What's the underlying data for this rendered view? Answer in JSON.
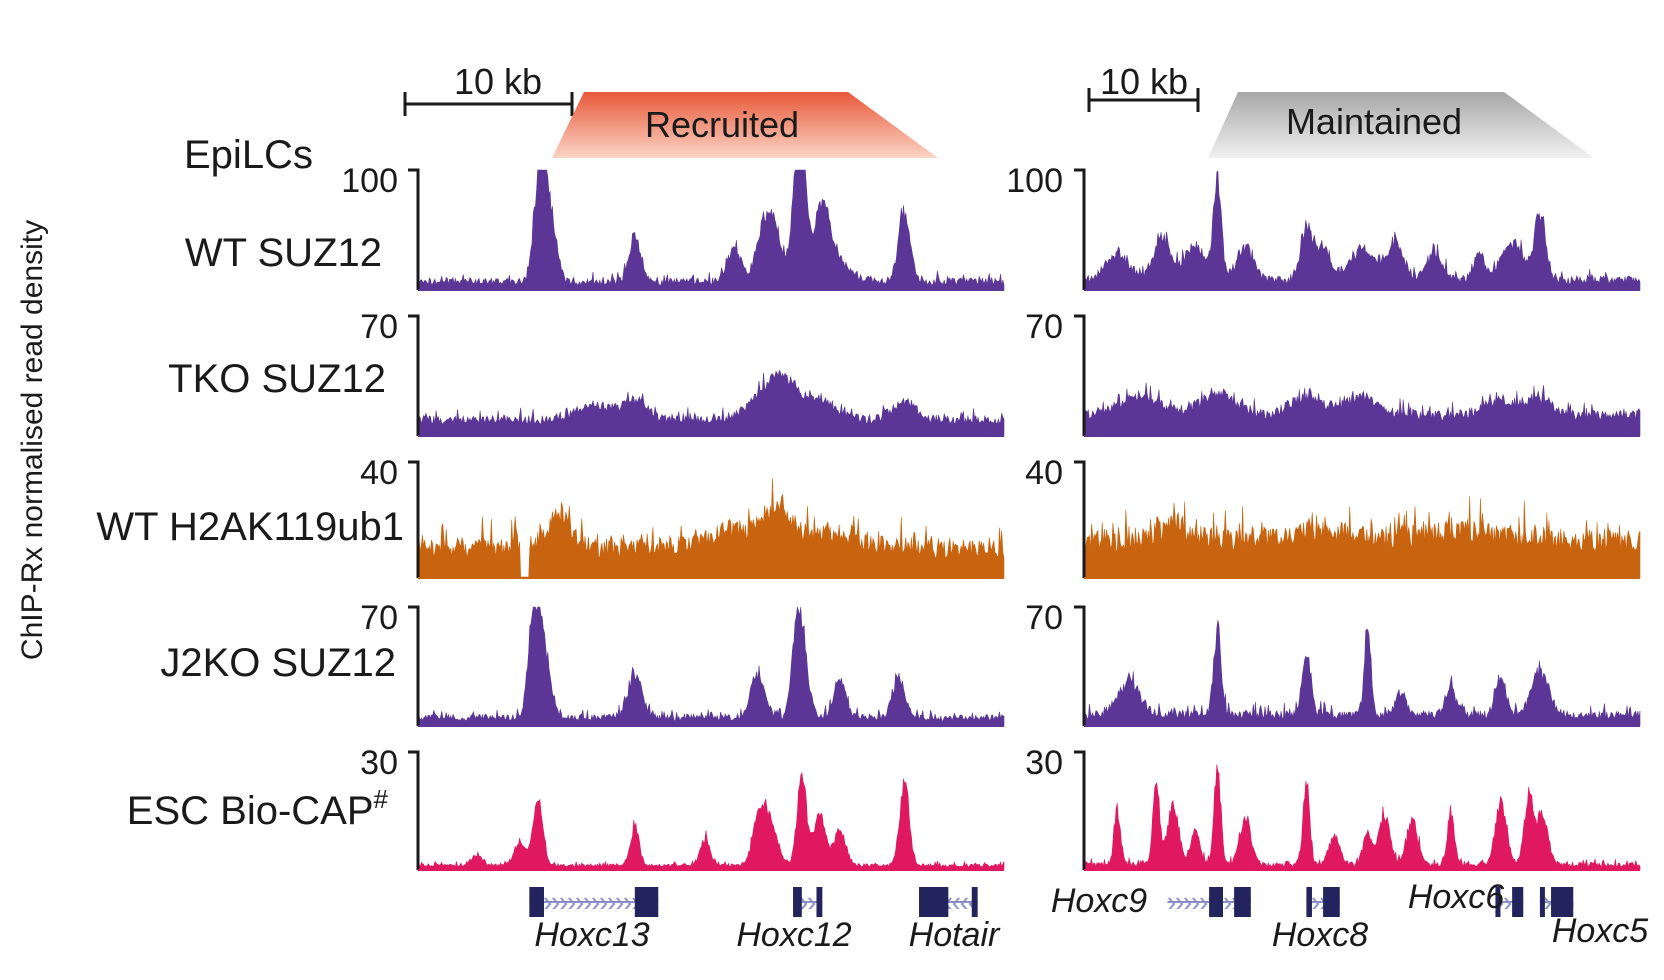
{
  "figure": {
    "y_axis_title": "ChIP-Rx normalised read density",
    "cell_label": "EpiLCs"
  },
  "colors": {
    "purple": "#5b3696",
    "orange": "#c8640f",
    "pink": "#e0185f",
    "gene": "#23245e",
    "intron": "#8b8fc8",
    "recruited_top": "#e8583a",
    "maintained_top": "#a7a7a7"
  },
  "panels": [
    {
      "id": "left",
      "banner": "Recruited",
      "scale_bar": "10 kb",
      "genes": [
        {
          "name": "Hoxc13",
          "start": 0.19,
          "end": 0.41,
          "exons": [
            [
              0.19,
              0.215
            ],
            [
              0.37,
              0.41
            ]
          ],
          "strand": "+"
        },
        {
          "name": "Hoxc12",
          "start": 0.64,
          "end": 0.69,
          "exons": [
            [
              0.64,
              0.655
            ],
            [
              0.68,
              0.69
            ]
          ],
          "strand": "+"
        },
        {
          "name": "Hotair",
          "start": 0.855,
          "end": 0.955,
          "exons": [
            [
              0.855,
              0.905
            ],
            [
              0.945,
              0.955
            ]
          ],
          "strand": "-"
        }
      ]
    },
    {
      "id": "right",
      "banner": "Maintained",
      "scale_bar": "10 kb",
      "genes": [
        {
          "name": "Hoxc9",
          "start": 0.15,
          "end": 0.3,
          "exons": [
            [
              0.225,
              0.25
            ],
            [
              0.27,
              0.3
            ]
          ],
          "strand": "+"
        },
        {
          "name": "Hoxc8",
          "start": 0.4,
          "end": 0.46,
          "exons": [
            [
              0.4,
              0.41
            ],
            [
              0.43,
              0.46
            ]
          ],
          "strand": "+"
        },
        {
          "name": "Hoxc6",
          "start": 0.74,
          "end": 0.79,
          "exons": [
            [
              0.74,
              0.745
            ],
            [
              0.77,
              0.79
            ]
          ],
          "strand": "+"
        },
        {
          "name": "Hoxc5",
          "start": 0.82,
          "end": 0.88,
          "exons": [
            [
              0.82,
              0.825
            ],
            [
              0.84,
              0.88
            ]
          ],
          "strand": "+"
        }
      ]
    }
  ],
  "chart_data": {
    "type": "area",
    "title": "",
    "ylabel": "ChIP-Rx normalised read density",
    "xlabel": "",
    "tracks": [
      {
        "name": "WT SUZ12",
        "color_key": "purple",
        "ylim": [
          0,
          100
        ],
        "tick": "100",
        "series": {
          "left": {
            "base": 4,
            "noise": 6,
            "seed": 11,
            "peaks": [
              [
                0.22,
                92,
                0.012
              ],
              [
                0.205,
                70,
                0.008
              ],
              [
                0.37,
                42,
                0.01
              ],
              [
                0.54,
                30,
                0.012
              ],
              [
                0.59,
                55,
                0.012
              ],
              [
                0.61,
                45,
                0.01
              ],
              [
                0.655,
                98,
                0.008
              ],
              [
                0.645,
                60,
                0.01
              ],
              [
                0.69,
                45,
                0.012
              ],
              [
                0.83,
                68,
                0.01
              ],
              [
                0.695,
                30,
                0.03
              ]
            ]
          },
          "right": {
            "base": 5,
            "noise": 7,
            "seed": 23,
            "peaks": [
              [
                0.06,
                25,
                0.02
              ],
              [
                0.14,
                40,
                0.015
              ],
              [
                0.2,
                30,
                0.02
              ],
              [
                0.24,
                95,
                0.007
              ],
              [
                0.29,
                30,
                0.015
              ],
              [
                0.4,
                50,
                0.01
              ],
              [
                0.43,
                28,
                0.015
              ],
              [
                0.5,
                30,
                0.02
              ],
              [
                0.56,
                35,
                0.015
              ],
              [
                0.63,
                25,
                0.015
              ],
              [
                0.77,
                35,
                0.02
              ],
              [
                0.82,
                60,
                0.01
              ],
              [
                0.71,
                22,
                0.01
              ]
            ]
          }
        }
      },
      {
        "name": "TKO SUZ12",
        "color_key": "purple",
        "ylim": [
          0,
          70
        ],
        "tick": "70",
        "series": {
          "left": {
            "base": 7,
            "noise": 5,
            "seed": 31,
            "peaks": [
              [
                0.37,
                14,
                0.02
              ],
              [
                0.59,
                16,
                0.03
              ],
              [
                0.625,
                20,
                0.02
              ],
              [
                0.68,
                14,
                0.03
              ],
              [
                0.83,
                12,
                0.02
              ],
              [
                0.3,
                10,
                0.03
              ]
            ]
          },
          "right": {
            "base": 9,
            "noise": 6,
            "seed": 37,
            "peaks": [
              [
                0.1,
                12,
                0.04
              ],
              [
                0.24,
                15,
                0.03
              ],
              [
                0.4,
                12,
                0.03
              ],
              [
                0.5,
                12,
                0.03
              ],
              [
                0.75,
                10,
                0.03
              ],
              [
                0.82,
                12,
                0.02
              ]
            ]
          }
        }
      },
      {
        "name": "WT H2AK119ub1",
        "color_key": "orange",
        "ylim": [
          0,
          40
        ],
        "tick": "40",
        "series": {
          "left": {
            "base": 7,
            "noise": 7,
            "seed": 41,
            "peaks": [
              [
                0.24,
                12,
                0.02
              ],
              [
                0.55,
                7,
                0.05
              ],
              [
                0.615,
                12,
                0.02
              ],
              [
                0.7,
                6,
                0.05
              ]
            ],
            "dip": [
              0.175,
              0.19
            ]
          },
          "right": {
            "base": 9,
            "noise": 8,
            "seed": 43,
            "peaks": [
              [
                0.16,
                6,
                0.03
              ],
              [
                0.42,
                4,
                0.05
              ],
              [
                0.68,
                4,
                0.05
              ]
            ]
          }
        }
      },
      {
        "name": "J2KO SUZ12",
        "color_key": "purple",
        "ylim": [
          0,
          70
        ],
        "tick": "70",
        "series": {
          "left": {
            "base": 3,
            "noise": 4,
            "seed": 53,
            "peaks": [
              [
                0.21,
                60,
                0.012
              ],
              [
                0.195,
                45,
                0.008
              ],
              [
                0.37,
                28,
                0.012
              ],
              [
                0.58,
                30,
                0.012
              ],
              [
                0.655,
                52,
                0.01
              ],
              [
                0.645,
                35,
                0.008
              ],
              [
                0.72,
                25,
                0.01
              ],
              [
                0.82,
                28,
                0.01
              ]
            ]
          },
          "right": {
            "base": 4,
            "noise": 5,
            "seed": 59,
            "peaks": [
              [
                0.08,
                22,
                0.02
              ],
              [
                0.24,
                55,
                0.007
              ],
              [
                0.4,
                38,
                0.008
              ],
              [
                0.51,
                58,
                0.006
              ],
              [
                0.57,
                15,
                0.01
              ],
              [
                0.66,
                18,
                0.01
              ],
              [
                0.75,
                25,
                0.01
              ],
              [
                0.82,
                30,
                0.015
              ]
            ]
          }
        }
      },
      {
        "name": "ESC Bio-CAP",
        "superscript": "#",
        "color_key": "pink",
        "ylim": [
          0,
          30
        ],
        "tick": "30",
        "series": {
          "left": {
            "base": 0.8,
            "noise": 0.8,
            "seed": 61,
            "peaks": [
              [
                0.205,
                19,
                0.008
              ],
              [
                0.175,
                7,
                0.01
              ],
              [
                0.37,
                12,
                0.007
              ],
              [
                0.49,
                8,
                0.008
              ],
              [
                0.58,
                12,
                0.01
              ],
              [
                0.6,
                14,
                0.012
              ],
              [
                0.655,
                26,
                0.008
              ],
              [
                0.685,
                15,
                0.01
              ],
              [
                0.72,
                10,
                0.01
              ],
              [
                0.83,
                24,
                0.008
              ],
              [
                0.1,
                3,
                0.01
              ]
            ]
          },
          "right": {
            "base": 0.8,
            "noise": 1.2,
            "seed": 67,
            "peaks": [
              [
                0.06,
                15,
                0.006
              ],
              [
                0.13,
                22,
                0.006
              ],
              [
                0.16,
                18,
                0.01
              ],
              [
                0.24,
                28,
                0.006
              ],
              [
                0.29,
                14,
                0.01
              ],
              [
                0.4,
                23,
                0.006
              ],
              [
                0.45,
                8,
                0.01
              ],
              [
                0.54,
                15,
                0.01
              ],
              [
                0.59,
                13,
                0.01
              ],
              [
                0.66,
                16,
                0.006
              ],
              [
                0.75,
                18,
                0.01
              ],
              [
                0.8,
                20,
                0.008
              ],
              [
                0.825,
                15,
                0.01
              ],
              [
                0.2,
                10,
                0.008
              ],
              [
                0.51,
                9,
                0.008
              ]
            ]
          }
        }
      }
    ]
  }
}
